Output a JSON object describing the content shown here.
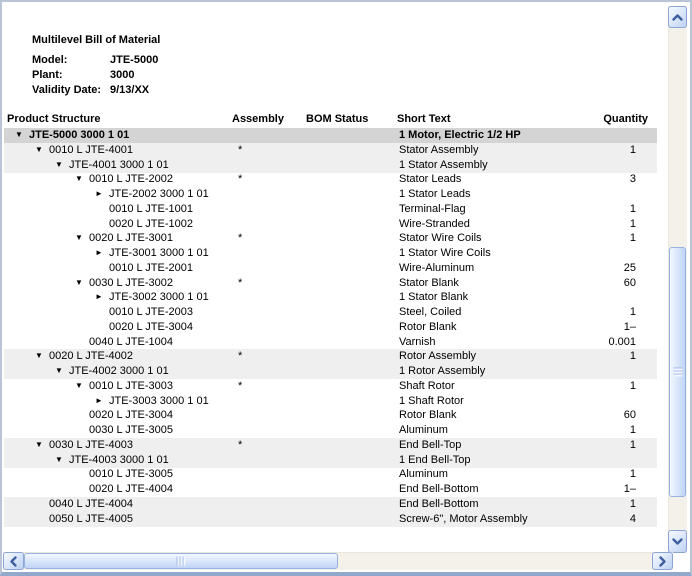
{
  "report": {
    "title": "Multilevel Bill of Material",
    "fields": [
      {
        "label": "Model:",
        "value": "JTE-5000"
      },
      {
        "label": "Plant:",
        "value": "3000"
      },
      {
        "label": "Validity Date:",
        "value": "9/13/XX"
      }
    ],
    "columns": {
      "product_structure": "Product Structure",
      "assembly": "Assembly",
      "bom_status": "BOM Status",
      "short_text": "Short Text",
      "quantity": "Quantity"
    }
  },
  "icons": {
    "expanded": "▼",
    "collapsed": "►"
  },
  "colors": {
    "root_row_bg": "#d4d4d4",
    "group_row_bg": "#efefef",
    "row_text": "#000000",
    "frame_border": "#b9c5d7",
    "frame_bottom": "#92a9cc",
    "scrollbar_button_border": "#8ca4d6",
    "scrollbar_chevron": "#3f5ea0",
    "scrollbar_track": "#f4f1ea",
    "scrollbar_thumb_from": "#f2f7fe",
    "scrollbar_thumb_to": "#c0d4f5"
  },
  "rows": [
    {
      "depth": 0,
      "arrow": "expanded",
      "text": "JTE-5000 3000 1 01",
      "assembly": "",
      "bom_status": "",
      "short_text": "1 Motor, Electric 1/2 HP",
      "qty": "",
      "style": "root"
    },
    {
      "depth": 1,
      "arrow": "expanded",
      "text": "0010 L JTE-4001",
      "assembly": "*",
      "bom_status": "",
      "short_text": "Stator Assembly",
      "qty": "1",
      "style": "group"
    },
    {
      "depth": 2,
      "arrow": "expanded",
      "text": "JTE-4001 3000 1 01",
      "assembly": "",
      "bom_status": "",
      "short_text": "1 Stator Assembly",
      "qty": "",
      "style": "group"
    },
    {
      "depth": 3,
      "arrow": "expanded",
      "text": "0010 L JTE-2002",
      "assembly": "*",
      "bom_status": "",
      "short_text": "Stator Leads",
      "qty": "3",
      "style": "plain"
    },
    {
      "depth": 4,
      "arrow": "collapsed",
      "text": "JTE-2002 3000 1 01",
      "assembly": "",
      "bom_status": "",
      "short_text": "1 Stator Leads",
      "qty": "",
      "style": "plain"
    },
    {
      "depth": 4,
      "arrow": null,
      "text": "0010 L JTE-1001",
      "assembly": "",
      "bom_status": "",
      "short_text": "Terminal-Flag",
      "qty": "1",
      "style": "plain"
    },
    {
      "depth": 4,
      "arrow": null,
      "text": "0020 L JTE-1002",
      "assembly": "",
      "bom_status": "",
      "short_text": "Wire-Stranded",
      "qty": "1",
      "style": "plain"
    },
    {
      "depth": 3,
      "arrow": "expanded",
      "text": "0020 L JTE-3001",
      "assembly": "*",
      "bom_status": "",
      "short_text": "Stator Wire Coils",
      "qty": "1",
      "style": "plain"
    },
    {
      "depth": 4,
      "arrow": "collapsed",
      "text": "JTE-3001 3000 1 01",
      "assembly": "",
      "bom_status": "",
      "short_text": "1 Stator Wire Coils",
      "qty": "",
      "style": "plain"
    },
    {
      "depth": 4,
      "arrow": null,
      "text": "0010 L JTE-2001",
      "assembly": "",
      "bom_status": "",
      "short_text": "Wire-Aluminum",
      "qty": "25",
      "style": "plain"
    },
    {
      "depth": 3,
      "arrow": "expanded",
      "text": "0030 L JTE-3002",
      "assembly": "*",
      "bom_status": "",
      "short_text": "Stator Blank",
      "qty": "60",
      "style": "plain"
    },
    {
      "depth": 4,
      "arrow": "collapsed",
      "text": "JTE-3002 3000 1 01",
      "assembly": "",
      "bom_status": "",
      "short_text": "1 Stator Blank",
      "qty": "",
      "style": "plain"
    },
    {
      "depth": 4,
      "arrow": null,
      "text": "0010 L JTE-2003",
      "assembly": "",
      "bom_status": "",
      "short_text": "Steel, Coiled",
      "qty": "1",
      "style": "plain"
    },
    {
      "depth": 4,
      "arrow": null,
      "text": "0020 L JTE-3004",
      "assembly": "",
      "bom_status": "",
      "short_text": "Rotor Blank",
      "qty": "1–",
      "style": "plain"
    },
    {
      "depth": 3,
      "arrow": null,
      "text": "0040 L JTE-1004",
      "assembly": "",
      "bom_status": "",
      "short_text": "Varnish",
      "qty": "0.001",
      "style": "plain"
    },
    {
      "depth": 1,
      "arrow": "expanded",
      "text": "0020 L JTE-4002",
      "assembly": "*",
      "bom_status": "",
      "short_text": "Rotor Assembly",
      "qty": "1",
      "style": "group"
    },
    {
      "depth": 2,
      "arrow": "expanded",
      "text": "JTE-4002 3000 1 01",
      "assembly": "",
      "bom_status": "",
      "short_text": "1 Rotor Assembly",
      "qty": "",
      "style": "group"
    },
    {
      "depth": 3,
      "arrow": "expanded",
      "text": "0010 L JTE-3003",
      "assembly": "*",
      "bom_status": "",
      "short_text": "Shaft Rotor",
      "qty": "1",
      "style": "plain"
    },
    {
      "depth": 4,
      "arrow": "collapsed",
      "text": "JTE-3003 3000 1 01",
      "assembly": "",
      "bom_status": "",
      "short_text": "1 Shaft Rotor",
      "qty": "",
      "style": "plain"
    },
    {
      "depth": 3,
      "arrow": null,
      "text": "0020 L JTE-3004",
      "assembly": "",
      "bom_status": "",
      "short_text": "Rotor Blank",
      "qty": "60",
      "style": "plain"
    },
    {
      "depth": 3,
      "arrow": null,
      "text": "0030 L JTE-3005",
      "assembly": "",
      "bom_status": "",
      "short_text": "Aluminum",
      "qty": "1",
      "style": "plain"
    },
    {
      "depth": 1,
      "arrow": "expanded",
      "text": "0030 L JTE-4003",
      "assembly": "*",
      "bom_status": "",
      "short_text": "End Bell-Top",
      "qty": "1",
      "style": "group"
    },
    {
      "depth": 2,
      "arrow": "expanded",
      "text": "JTE-4003 3000 1 01",
      "assembly": "",
      "bom_status": "",
      "short_text": "1 End Bell-Top",
      "qty": "",
      "style": "group"
    },
    {
      "depth": 3,
      "arrow": null,
      "text": "0010 L JTE-3005",
      "assembly": "",
      "bom_status": "",
      "short_text": "Aluminum",
      "qty": "1",
      "style": "plain"
    },
    {
      "depth": 3,
      "arrow": null,
      "text": "0020 L JTE-4004",
      "assembly": "",
      "bom_status": "",
      "short_text": "End Bell-Bottom",
      "qty": "1–",
      "style": "plain"
    },
    {
      "depth": 1,
      "arrow": null,
      "text": "0040 L JTE-4004",
      "assembly": "",
      "bom_status": "",
      "short_text": "End Bell-Bottom",
      "qty": "1",
      "style": "group"
    },
    {
      "depth": 1,
      "arrow": null,
      "text": "0050 L JTE-4005",
      "assembly": "",
      "bom_status": "",
      "short_text": "Screw-6\", Motor Assembly",
      "qty": "4",
      "style": "group"
    }
  ]
}
